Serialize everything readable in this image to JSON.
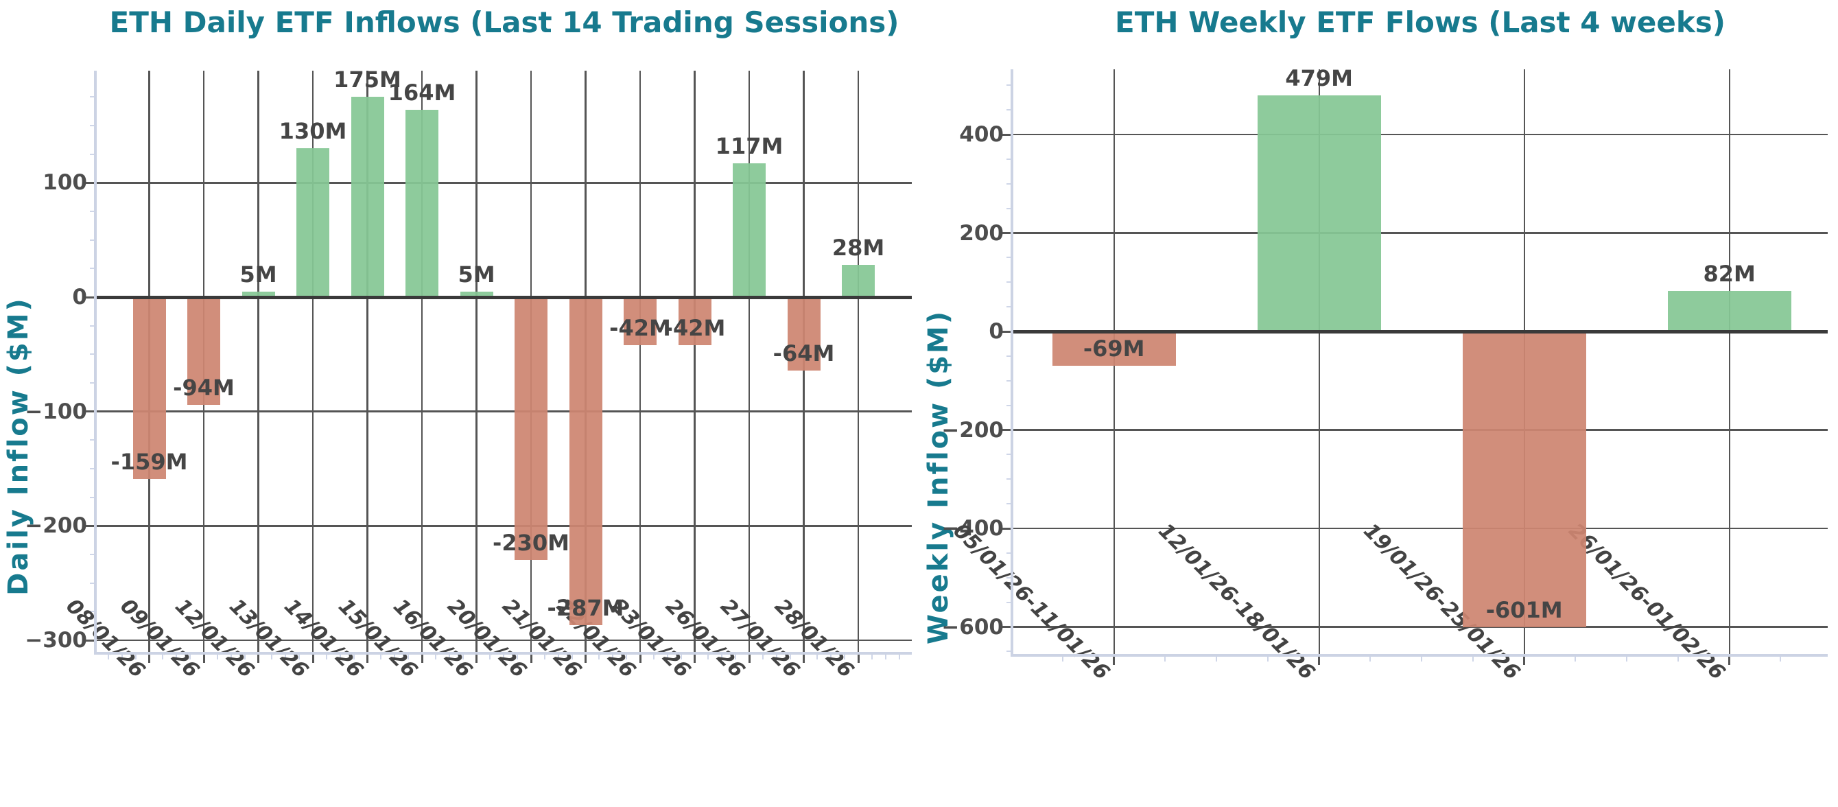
{
  "colors": {
    "title": "#177a8e",
    "axis_label": "#177a8e",
    "positive_bar": "#85c794",
    "negative_bar": "#ce8571",
    "grid": "#555555",
    "zero_line": "#3a3a3a",
    "ytick_label": "#4d4d4d",
    "xtick_label": "#434343",
    "bar_label": "#454545",
    "spine": "#ccd3e4"
  },
  "charts": [
    {
      "title": "ETH Daily ETF Inflows (Last 14 Trading Sessions)",
      "ylabel": "Daily Inflow ($M)",
      "chart_data": {
        "type": "bar",
        "categories": [
          "08/01/26",
          "09/01/26",
          "12/01/26",
          "13/01/26",
          "14/01/26",
          "15/01/26",
          "16/01/26",
          "20/01/26",
          "21/01/26",
          "22/01/26",
          "23/01/26",
          "26/01/26",
          "27/01/26",
          "28/01/26"
        ],
        "values": [
          -159,
          -94,
          5,
          130,
          175,
          164,
          5,
          -230,
          -287,
          -42,
          -42,
          117,
          -64,
          28
        ],
        "bar_labels": [
          "-159M",
          "-94M",
          "5M",
          "130M",
          "175M",
          "164M",
          "5M",
          "-230M",
          "-287M",
          "-42M",
          "-42M",
          "117M",
          "-64M",
          "28M"
        ],
        "yticks": [
          {
            "v": 100,
            "label": "100"
          },
          {
            "v": 0,
            "label": "0"
          },
          {
            "v": -100,
            "label": "−100"
          },
          {
            "v": -200,
            "label": "−200"
          },
          {
            "v": -300,
            "label": "−300"
          }
        ],
        "ylim": [
          -310,
          198
        ],
        "xlabel": "",
        "ylabel": "Daily Inflow ($M)",
        "grid": true,
        "legend": false
      }
    },
    {
      "title": "ETH Weekly ETF Flows (Last 4 weeks)",
      "ylabel": "Weekly Inflow ($M)",
      "chart_data": {
        "type": "bar",
        "categories": [
          "05/01/26-11/01/26",
          "12/01/26-18/01/26",
          "19/01/26-25/01/26",
          "26/01/26-01/02/26"
        ],
        "values": [
          -69,
          479,
          -601,
          82
        ],
        "bar_labels": [
          "-69M",
          "479M",
          "-601M",
          "82M"
        ],
        "yticks": [
          {
            "v": 400,
            "label": "400"
          },
          {
            "v": 200,
            "label": "200"
          },
          {
            "v": 0,
            "label": "0"
          },
          {
            "v": -200,
            "label": "−200"
          },
          {
            "v": -400,
            "label": "−400"
          },
          {
            "v": -600,
            "label": "−600"
          }
        ],
        "ylim": [
          -655,
          533
        ],
        "xlabel": "",
        "ylabel": "Weekly Inflow ($M)",
        "grid": true,
        "legend": false
      }
    }
  ]
}
